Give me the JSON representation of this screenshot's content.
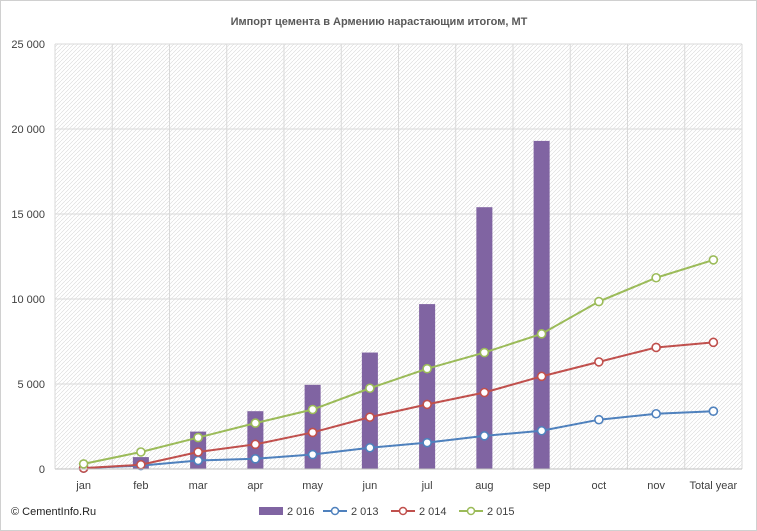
{
  "chart_data": {
    "type": "bar+line",
    "title": "Импорт цемента в Армению нарастающим  итогом, МТ",
    "categories": [
      "jan",
      "feb",
      "mar",
      "apr",
      "may",
      "jun",
      "jul",
      "aug",
      "sep",
      "oct",
      "nov",
      "Total year"
    ],
    "ylim": [
      0,
      25000
    ],
    "yticks": [
      0,
      5000,
      10000,
      15000,
      20000,
      25000
    ],
    "ytick_labels": [
      "0",
      "5 000",
      "10 000",
      "15 000",
      "20 000",
      "25 000"
    ],
    "grid": true,
    "legend_position": "bottom",
    "series": [
      {
        "name": "2 016",
        "kind": "bar",
        "color": "#8064a2",
        "values": [
          0,
          700,
          2200,
          3400,
          4950,
          6850,
          9700,
          15400,
          19300,
          null,
          null,
          null
        ]
      },
      {
        "name": "2 013",
        "kind": "line",
        "color": "#4f81bd",
        "values": [
          50,
          200,
          500,
          600,
          850,
          1250,
          1550,
          1950,
          2250,
          2900,
          3250,
          3400
        ]
      },
      {
        "name": "2 014",
        "kind": "line",
        "color": "#c0504d",
        "values": [
          50,
          250,
          1000,
          1450,
          2150,
          3050,
          3800,
          4500,
          5450,
          6300,
          7150,
          7450
        ]
      },
      {
        "name": "2 015",
        "kind": "line",
        "color": "#9bbb59",
        "values": [
          300,
          1000,
          1850,
          2700,
          3500,
          4750,
          5900,
          6850,
          7950,
          9850,
          11250,
          12300
        ]
      }
    ]
  },
  "footer": {
    "copyright": "© CementInfo.Ru"
  }
}
